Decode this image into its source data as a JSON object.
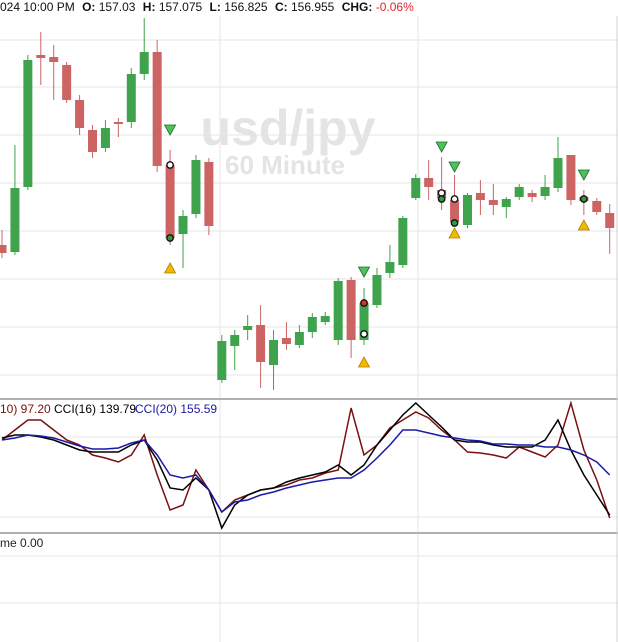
{
  "header": {
    "time": "024 10:00 PM",
    "fields": [
      {
        "label": "O:",
        "value": "157.03"
      },
      {
        "label": "H:",
        "value": "157.075"
      },
      {
        "label": "L:",
        "value": "156.825"
      },
      {
        "label": "C:",
        "value": "156.955"
      }
    ],
    "change_label": "CHG:",
    "change": "-0.06%"
  },
  "watermark": {
    "symbol": "usd/jpy",
    "interval": "60 Minute"
  },
  "lower_pane_label": "me 0.00",
  "chart_data": [
    {
      "type": "candlestick",
      "up_color": "#3fa34d",
      "down_color": "#cc6464",
      "ylim": [
        156.105,
        158.015
      ],
      "open": [
        156.87,
        156.835,
        157.16,
        157.82,
        157.81,
        157.77,
        157.595,
        157.445,
        157.355,
        157.485,
        157.485,
        157.725,
        157.835,
        157.27,
        156.925,
        157.025,
        157.285,
        156.195,
        156.365,
        156.445,
        156.47,
        156.27,
        156.405,
        156.37,
        156.435,
        156.485,
        156.395,
        156.695,
        156.395,
        156.57,
        156.73,
        156.77,
        157.105,
        157.205,
        157.145,
        157.095,
        156.97,
        157.13,
        157.095,
        157.06,
        157.11,
        157.13,
        157.115,
        157.155,
        157.32,
        157.11,
        157.09,
        157.03
      ],
      "high": [
        156.945,
        157.37,
        157.82,
        157.935,
        157.87,
        157.785,
        157.62,
        157.47,
        157.495,
        157.505,
        157.755,
        158.005,
        157.895,
        157.345,
        157.045,
        157.32,
        157.305,
        156.42,
        156.445,
        156.52,
        156.57,
        156.445,
        156.485,
        156.47,
        156.53,
        156.535,
        156.705,
        156.71,
        156.655,
        156.755,
        156.87,
        157.015,
        157.225,
        157.295,
        157.31,
        157.22,
        157.13,
        157.195,
        157.175,
        157.11,
        157.175,
        157.145,
        157.22,
        157.41,
        157.32,
        157.145,
        157.105,
        157.075
      ],
      "low": [
        156.805,
        156.82,
        157.145,
        157.67,
        157.595,
        157.58,
        157.42,
        157.305,
        157.335,
        157.41,
        157.455,
        157.695,
        157.235,
        156.87,
        156.755,
        157.005,
        156.92,
        156.18,
        156.245,
        156.395,
        156.155,
        156.145,
        156.345,
        156.355,
        156.405,
        156.47,
        156.37,
        156.305,
        156.37,
        156.555,
        156.705,
        156.755,
        157.095,
        157.095,
        157.045,
        156.97,
        156.955,
        157.02,
        157.02,
        157.005,
        157.095,
        157.085,
        157.095,
        157.135,
        157.07,
        157.02,
        157.02,
        156.825
      ],
      "close": [
        156.83,
        157.155,
        157.795,
        157.805,
        157.785,
        157.595,
        157.455,
        157.335,
        157.455,
        157.475,
        157.725,
        157.835,
        157.265,
        156.905,
        157.015,
        157.295,
        156.965,
        156.39,
        156.42,
        156.465,
        156.285,
        156.395,
        156.375,
        156.435,
        156.51,
        156.515,
        156.69,
        156.395,
        156.58,
        156.72,
        156.785,
        157.005,
        157.205,
        157.16,
        157.105,
        156.985,
        157.12,
        157.095,
        157.07,
        157.1,
        157.16,
        157.11,
        157.16,
        157.305,
        157.095,
        157.09,
        157.035,
        156.955
      ],
      "signals": [
        {
          "index": 13,
          "price": 157.445,
          "shape": "triangle-down",
          "color": "#4cc35a"
        },
        {
          "index": 13,
          "price": 157.27,
          "shape": "circle",
          "color": "#ffffff"
        },
        {
          "index": 13,
          "price": 156.905,
          "shape": "circle",
          "color": "#2e9d3e"
        },
        {
          "index": 13,
          "price": 156.755,
          "shape": "triangle-up",
          "color": "#f5b800"
        },
        {
          "index": 28,
          "price": 156.735,
          "shape": "triangle-down",
          "color": "#4cc35a"
        },
        {
          "index": 28,
          "price": 156.58,
          "shape": "circle",
          "color": "#e03030"
        },
        {
          "index": 28,
          "price": 156.425,
          "shape": "circle",
          "color": "#ffffff"
        },
        {
          "index": 28,
          "price": 156.285,
          "shape": "triangle-up",
          "color": "#f5b800"
        },
        {
          "index": 34,
          "price": 157.36,
          "shape": "triangle-down",
          "color": "#4cc35a"
        },
        {
          "index": 34,
          "price": 157.13,
          "shape": "circle",
          "color": "#ffffff"
        },
        {
          "index": 34,
          "price": 157.1,
          "shape": "circle",
          "color": "#2e9d3e"
        },
        {
          "index": 35,
          "price": 157.26,
          "shape": "triangle-down",
          "color": "#4cc35a"
        },
        {
          "index": 35,
          "price": 157.1,
          "shape": "circle",
          "color": "#ffffff"
        },
        {
          "index": 35,
          "price": 156.98,
          "shape": "circle",
          "color": "#2e9d3e"
        },
        {
          "index": 35,
          "price": 156.93,
          "shape": "triangle-up",
          "color": "#f5b800"
        },
        {
          "index": 45,
          "price": 157.22,
          "shape": "triangle-down",
          "color": "#4cc35a"
        },
        {
          "index": 45,
          "price": 157.1,
          "shape": "circle",
          "color": "#2e9d3e"
        },
        {
          "index": 45,
          "price": 156.97,
          "shape": "triangle-up",
          "color": "#f5b800"
        }
      ]
    },
    {
      "type": "line",
      "ylim": [
        -137.5,
        192.5
      ],
      "series": [
        {
          "name": "10) 97.20",
          "color": "#7a1010",
          "values": [
            92.5,
            117.5,
            142.5,
            142.5,
            117.5,
            92.5,
            80,
            55,
            47.5,
            37.5,
            55,
            105,
            5,
            -82.5,
            -70,
            17.5,
            -32.5,
            -87.5,
            -57.5,
            -45,
            -32.5,
            -27.5,
            -20,
            -7.5,
            -2.5,
            10,
            17.5,
            172.5,
            55,
            80,
            122.5,
            142.5,
            162.5,
            147.5,
            117.5,
            92.5,
            62.5,
            60,
            55,
            47.5,
            75,
            62.5,
            50,
            80,
            185,
            67.5,
            -7.5,
            -102.5
          ]
        },
        {
          "name": "CCI(16) 139.79",
          "color": "#000000",
          "values": [
            97.5,
            105,
            105,
            100,
            92.5,
            80,
            67.5,
            62.5,
            62.5,
            62.5,
            80,
            92.5,
            42.5,
            -27.5,
            -32.5,
            -2.5,
            -32.5,
            -127.5,
            -70,
            -45,
            -32.5,
            -27.5,
            -12.5,
            -2.5,
            5,
            12.5,
            30,
            5,
            30,
            80,
            117.5,
            155,
            185,
            155,
            125,
            92.5,
            87.5,
            87.5,
            80,
            75,
            75,
            75,
            92.5,
            142.5,
            67.5,
            5,
            -45,
            -95
          ]
        },
        {
          "name": "CCI(20) 155.59",
          "color": "#1a1aa8",
          "values": [
            92.5,
            97.5,
            105,
            102.5,
            97.5,
            87.5,
            77.5,
            70,
            70,
            72.5,
            85,
            92.5,
            55,
            5,
            -2.5,
            5,
            -32.5,
            -87.5,
            -62.5,
            -57.5,
            -45,
            -37.5,
            -27.5,
            -20,
            -12.5,
            -7.5,
            -2.5,
            -2.5,
            17.5,
            47.5,
            80,
            117.5,
            117.5,
            110,
            102.5,
            97.5,
            92.5,
            90,
            82.5,
            82.5,
            80,
            80,
            75,
            75,
            67.5,
            55,
            37.5,
            5
          ]
        }
      ]
    }
  ]
}
